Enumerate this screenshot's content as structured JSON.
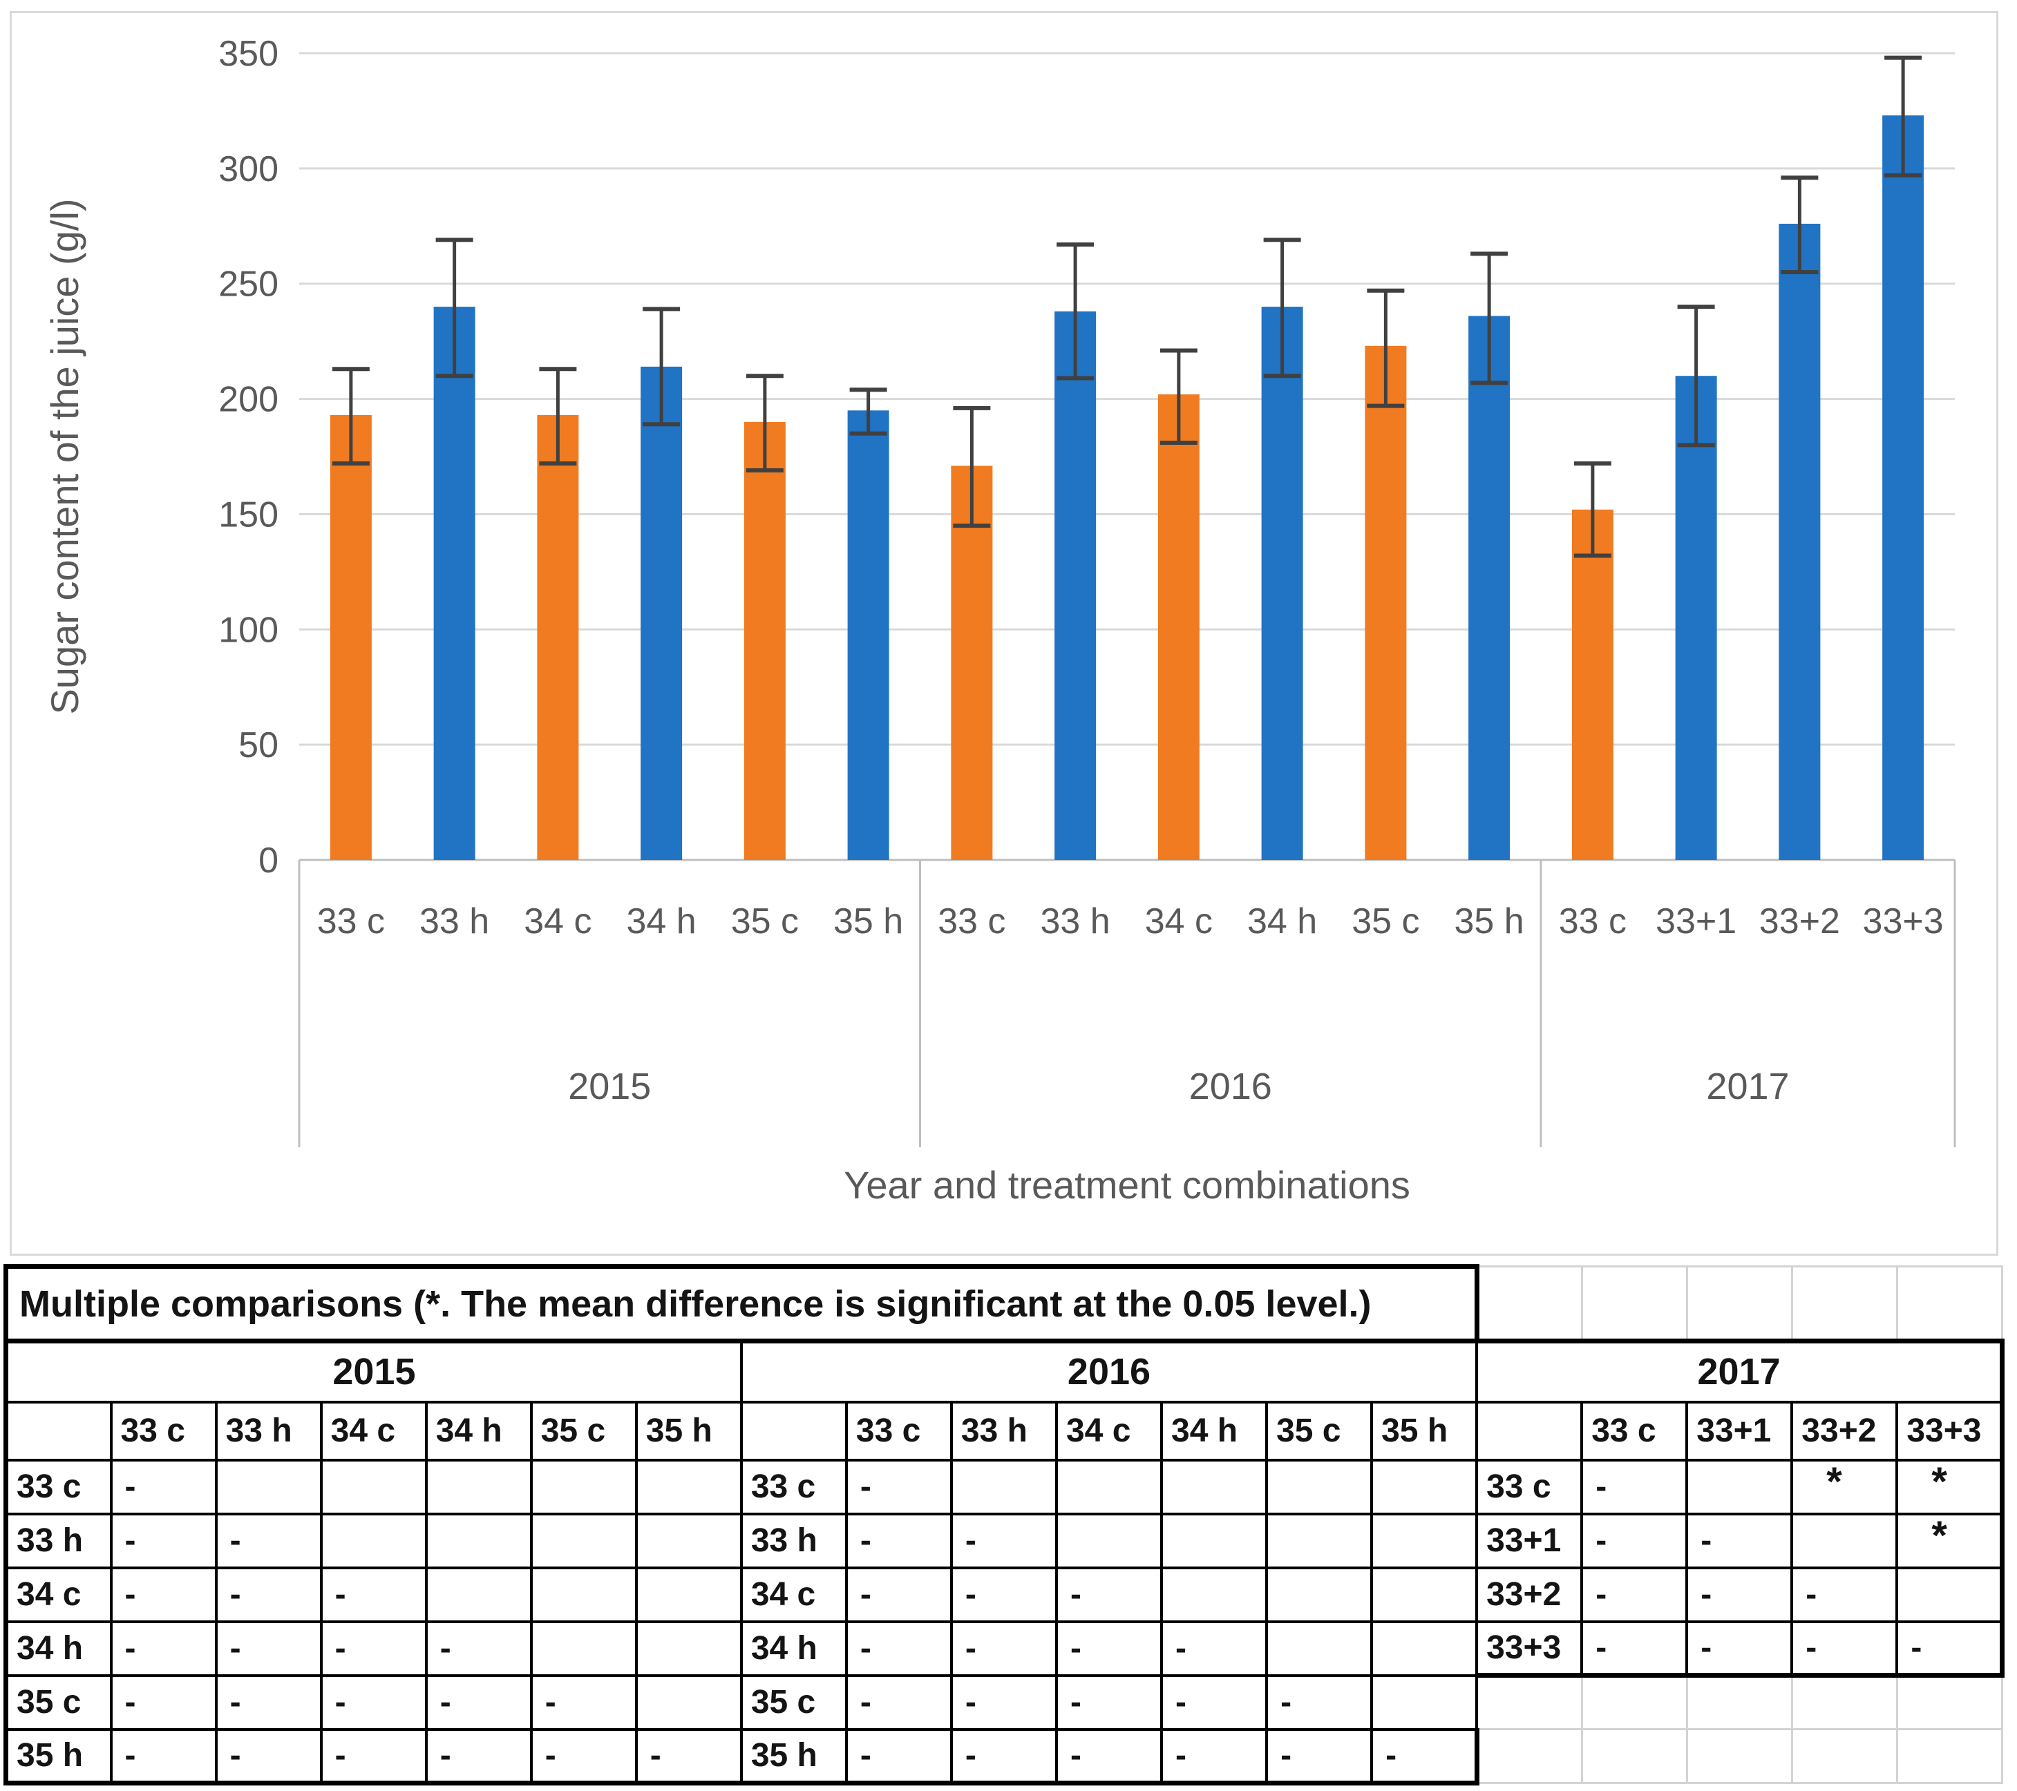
{
  "chart_data": {
    "type": "bar",
    "title": "",
    "ylabel": "Sugar content of the juice (g/l)",
    "xlabel": "Year and treatment combinations",
    "ylim": [
      0,
      350
    ],
    "yticks": [
      0,
      50,
      100,
      150,
      200,
      250,
      300,
      350
    ],
    "grid": true,
    "legend": "none",
    "error_bars": true,
    "groups": [
      {
        "year": "2015",
        "bars": [
          {
            "label": "33 c",
            "value": 193,
            "err_low": 172,
            "err_high": 213,
            "series": "c"
          },
          {
            "label": "33 h",
            "value": 240,
            "err_low": 210,
            "err_high": 269,
            "series": "h"
          },
          {
            "label": "34 c",
            "value": 193,
            "err_low": 172,
            "err_high": 213,
            "series": "c"
          },
          {
            "label": "34 h",
            "value": 214,
            "err_low": 189,
            "err_high": 239,
            "series": "h"
          },
          {
            "label": "35 c",
            "value": 190,
            "err_low": 169,
            "err_high": 210,
            "series": "c"
          },
          {
            "label": "35 h",
            "value": 195,
            "err_low": 185,
            "err_high": 204,
            "series": "h"
          }
        ]
      },
      {
        "year": "2016",
        "bars": [
          {
            "label": "33 c",
            "value": 171,
            "err_low": 145,
            "err_high": 196,
            "series": "c"
          },
          {
            "label": "33 h",
            "value": 238,
            "err_low": 209,
            "err_high": 267,
            "series": "h"
          },
          {
            "label": "34 c",
            "value": 202,
            "err_low": 181,
            "err_high": 221,
            "series": "c"
          },
          {
            "label": "34 h",
            "value": 240,
            "err_low": 210,
            "err_high": 269,
            "series": "h"
          },
          {
            "label": "35 c",
            "value": 223,
            "err_low": 197,
            "err_high": 247,
            "series": "c"
          },
          {
            "label": "35 h",
            "value": 236,
            "err_low": 207,
            "err_high": 263,
            "series": "h"
          }
        ]
      },
      {
        "year": "2017",
        "bars": [
          {
            "label": "33 c",
            "value": 152,
            "err_low": 132,
            "err_high": 172,
            "series": "c"
          },
          {
            "label": "33+1",
            "value": 210,
            "err_low": 180,
            "err_high": 240,
            "series": "h"
          },
          {
            "label": "33+2",
            "value": 276,
            "err_low": 255,
            "err_high": 296,
            "series": "h"
          },
          {
            "label": "33+3",
            "value": 323,
            "err_low": 297,
            "err_high": 348,
            "series": "h"
          }
        ]
      }
    ],
    "colors": {
      "c": "#F07B21",
      "h": "#2173C4",
      "error": "#404040",
      "grid": "#D9D9D9",
      "axis_line": "#BFBFBF",
      "text": "#595959",
      "panel_border": "#D9D9D9"
    }
  },
  "table": {
    "title": "Multiple comparisons (*. The mean difference is significant at the 0.05 level.)",
    "dash": "-",
    "star": "*",
    "blocks": [
      {
        "year": "2015",
        "cols": [
          "33 c",
          "33 h",
          "34 c",
          "34 h",
          "35 c",
          "35 h"
        ],
        "rows": [
          {
            "label": "33 c",
            "cells": [
              "-",
              "",
              "",
              "",
              "",
              ""
            ]
          },
          {
            "label": "33 h",
            "cells": [
              "-",
              "-",
              "",
              "",
              "",
              ""
            ]
          },
          {
            "label": "34 c",
            "cells": [
              "-",
              "-",
              "-",
              "",
              "",
              ""
            ]
          },
          {
            "label": "34 h",
            "cells": [
              "-",
              "-",
              "-",
              "-",
              "",
              ""
            ]
          },
          {
            "label": "35 c",
            "cells": [
              "-",
              "-",
              "-",
              "-",
              "-",
              ""
            ]
          },
          {
            "label": "35 h",
            "cells": [
              "-",
              "-",
              "-",
              "-",
              "-",
              "-"
            ]
          }
        ]
      },
      {
        "year": "2016",
        "cols": [
          "33 c",
          "33 h",
          "34 c",
          "34 h",
          "35 c",
          "35 h"
        ],
        "rows": [
          {
            "label": "33 c",
            "cells": [
              "-",
              "",
              "",
              "",
              "",
              ""
            ]
          },
          {
            "label": "33 h",
            "cells": [
              "-",
              "-",
              "",
              "",
              "",
              ""
            ]
          },
          {
            "label": "34 c",
            "cells": [
              "-",
              "-",
              "-",
              "",
              "",
              ""
            ]
          },
          {
            "label": "34 h",
            "cells": [
              "-",
              "-",
              "-",
              "-",
              "",
              ""
            ]
          },
          {
            "label": "35 c",
            "cells": [
              "-",
              "-",
              "-",
              "-",
              "-",
              ""
            ]
          },
          {
            "label": "35 h",
            "cells": [
              "-",
              "-",
              "-",
              "-",
              "-",
              "-"
            ]
          }
        ]
      },
      {
        "year": "2017",
        "cols": [
          "33 c",
          "33+1",
          "33+2",
          "33+3"
        ],
        "rows": [
          {
            "label": "33 c",
            "cells": [
              "-",
              "",
              "*",
              "*"
            ]
          },
          {
            "label": "33+1",
            "cells": [
              "-",
              "-",
              "",
              "*"
            ]
          },
          {
            "label": "33+2",
            "cells": [
              "-",
              "-",
              "-",
              ""
            ]
          },
          {
            "label": "33+3",
            "cells": [
              "-",
              "-",
              "-",
              "-"
            ]
          }
        ],
        "trailing_empty_rows": 2
      }
    ]
  }
}
